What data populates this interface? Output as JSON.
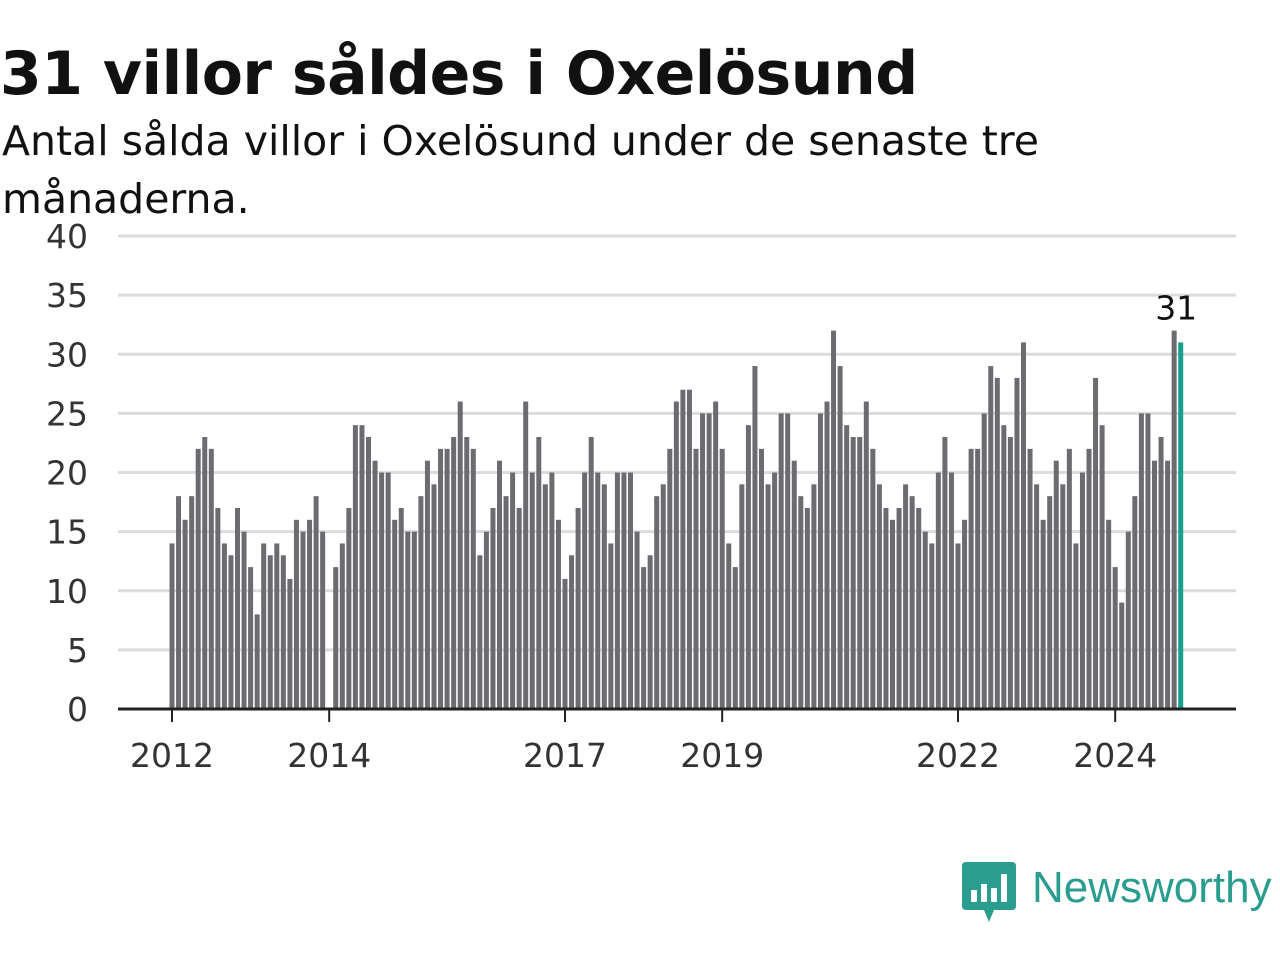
{
  "header": {
    "title": "31 villor såldes i Oxelösund",
    "subtitle": "Antal sålda villor i Oxelösund under de senaste tre månaderna."
  },
  "colors": {
    "bar": "#6b6b70",
    "highlight": "#15a08e",
    "grid": "#dcdcdc",
    "axis": "#222222",
    "brand": "#2a9d8f"
  },
  "logo": {
    "icon": "newsworthy-bar-chart-icon",
    "text": "Newsworthy"
  },
  "chart_data": {
    "type": "bar",
    "title": "31 villor såldes i Oxelösund",
    "subtitle": "Antal sålda villor i Oxelösund under de senaste tre månaderna.",
    "xlabel": "",
    "ylabel": "",
    "ylim": [
      0,
      40
    ],
    "yticks": [
      "0",
      "5",
      "10",
      "15",
      "20",
      "25",
      "30",
      "35",
      "40"
    ],
    "xticks": [
      "2012",
      "2014",
      "2017",
      "2019",
      "2022",
      "2024"
    ],
    "grid": true,
    "legend": "none",
    "highlight_label": "31",
    "values": [
      14,
      18,
      16,
      18,
      22,
      23,
      22,
      17,
      14,
      13,
      17,
      15,
      12,
      8,
      14,
      13,
      14,
      13,
      11,
      16,
      15,
      16,
      18,
      15,
      0,
      12,
      14,
      17,
      24,
      24,
      23,
      21,
      20,
      20,
      16,
      17,
      15,
      15,
      18,
      21,
      19,
      22,
      22,
      23,
      26,
      23,
      22,
      13,
      15,
      17,
      21,
      18,
      20,
      17,
      26,
      20,
      23,
      19,
      20,
      16,
      11,
      13,
      17,
      20,
      23,
      20,
      19,
      14,
      20,
      20,
      20,
      15,
      12,
      13,
      18,
      19,
      22,
      26,
      27,
      27,
      22,
      25,
      25,
      26,
      22,
      14,
      12,
      19,
      24,
      29,
      22,
      19,
      20,
      25,
      25,
      21,
      18,
      17,
      19,
      25,
      26,
      32,
      29,
      24,
      23,
      23,
      26,
      22,
      19,
      17,
      16,
      17,
      19,
      18,
      17,
      15,
      14,
      20,
      23,
      20,
      14,
      16,
      22,
      22,
      25,
      29,
      28,
      24,
      23,
      28,
      31,
      22,
      19,
      16,
      18,
      21,
      19,
      22,
      14,
      20,
      22,
      28,
      24,
      16,
      12,
      9,
      15,
      18,
      25,
      25,
      21,
      23,
      21,
      32,
      31
    ],
    "highlight_index": 154
  }
}
